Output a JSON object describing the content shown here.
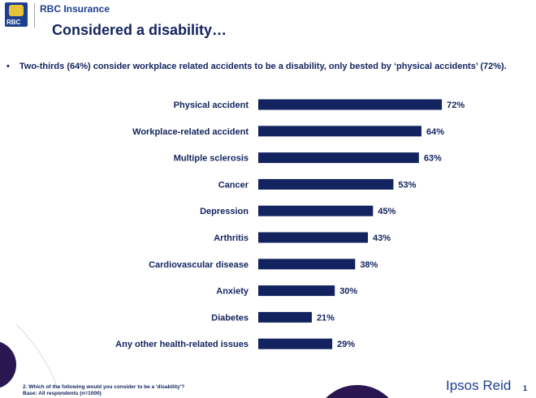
{
  "header": {
    "logo_text": "RBC",
    "brand": "RBC Insurance",
    "title": "Considered a disability…"
  },
  "bullet": "Two-thirds (64%) consider workplace related accidents to be a disability, only bested by ‘physical accidents’ (72%).",
  "chart_data": {
    "type": "bar",
    "orientation": "horizontal",
    "bar_color": "#13235f",
    "categories": [
      "Physical accident",
      "Workplace-related accident",
      "Multiple sclerosis",
      "Cancer",
      "Depression",
      "Arthritis",
      "Cardiovascular disease",
      "Anxiety",
      "Diabetes",
      "Any other health-related issues"
    ],
    "values": [
      72,
      64,
      63,
      53,
      45,
      43,
      38,
      30,
      21,
      29
    ],
    "unit": "%",
    "grid": false
  },
  "footer": {
    "question": "2. Which of the following would you consider to be a 'disability'?",
    "base": "Base: All respondents (n=1000)",
    "logo": "Ipsos Reid",
    "page": "1"
  }
}
